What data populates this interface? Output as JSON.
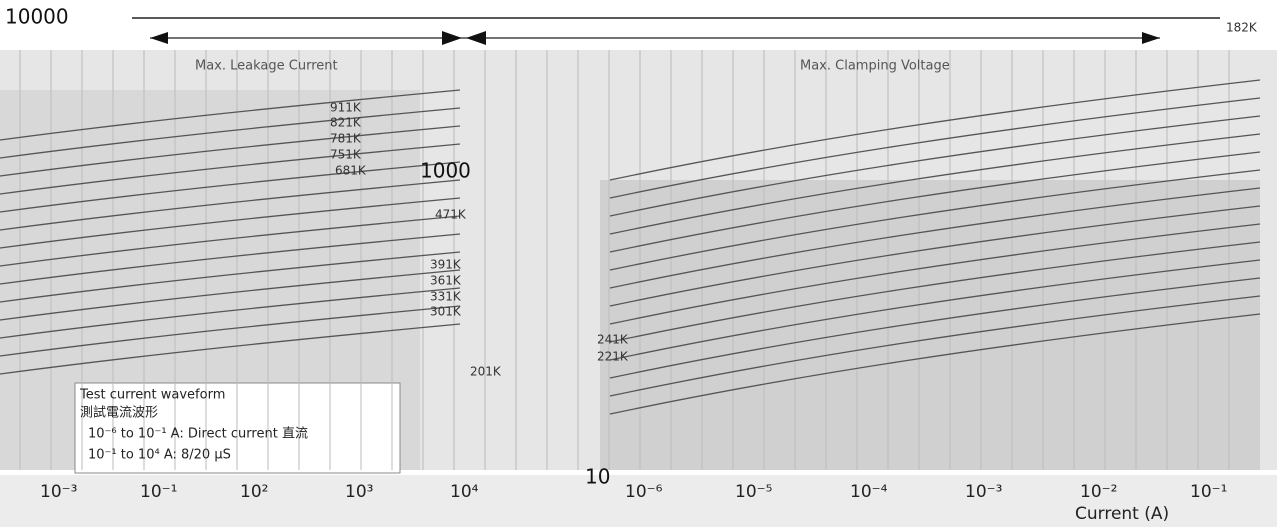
{
  "y_labels": [
    "10000",
    "1000",
    "10"
  ],
  "headers": [
    "Max. Leakage Current",
    "Max. Clamping Voltage"
  ],
  "series_labels": [
    "182K",
    "911K",
    "821K",
    "781K",
    "751K",
    "681K",
    "471K",
    "391K",
    "361K",
    "331K",
    "301K",
    "241K",
    "221K",
    "201K"
  ],
  "legend": {
    "title": "Test current waveform",
    "title_cn": "測試電流波形",
    "lines": [
      "10⁻⁶ to 10⁻¹ A: Direct current 直流",
      "10⁻¹ to 10⁴ A: 8/20 μS"
    ]
  },
  "x_labels_clamping": [
    "10⁻³",
    "10⁻¹",
    "10²",
    "10³",
    "10⁴"
  ],
  "x_labels_leakage": [
    "10⁻⁶",
    "10⁻⁵",
    "10⁻⁴",
    "10⁻³",
    "10⁻²",
    "10⁻¹"
  ],
  "x_axis_title": "Current (A)"
}
